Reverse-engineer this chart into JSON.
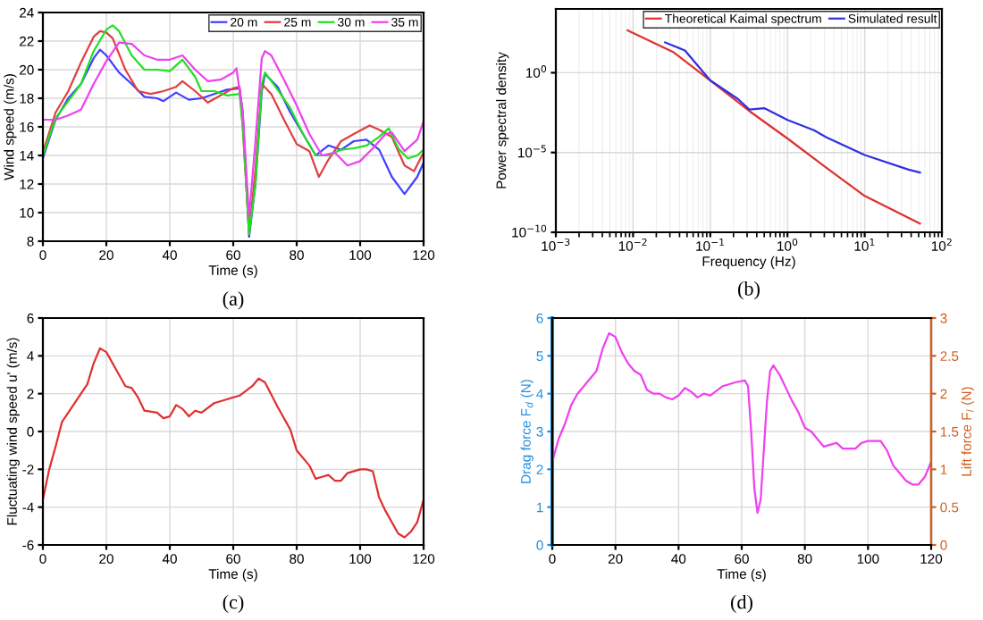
{
  "chart_data": [
    {
      "type": "line",
      "xlabel": "Time (s)",
      "ylabel": "Wind speed (m/s)",
      "annotations": [
        "(a)"
      ],
      "xlim": [
        0,
        120
      ],
      "ylim": [
        8,
        24
      ],
      "xticks": [
        0,
        20,
        40,
        60,
        80,
        100,
        120
      ],
      "yticks": [
        8,
        10,
        12,
        14,
        16,
        18,
        20,
        22,
        24
      ],
      "grid": true,
      "legend": "top right",
      "series": [
        {
          "name": "20 m",
          "color": "#4040ff",
          "x": [
            0,
            4,
            8,
            12,
            16,
            18,
            20,
            24,
            28,
            32,
            36,
            38,
            42,
            46,
            50,
            54,
            58,
            62,
            63,
            65,
            67,
            69,
            70,
            74,
            78,
            82,
            86,
            90,
            94,
            98,
            102,
            106,
            110,
            114,
            118,
            120
          ],
          "values": [
            13.8,
            16.5,
            18,
            19,
            20.8,
            21.4,
            21,
            19.8,
            19,
            18.1,
            18,
            17.8,
            18.4,
            17.9,
            18,
            18.3,
            18.6,
            18.7,
            17,
            8.3,
            12,
            18.5,
            19.7,
            18.8,
            17,
            15.5,
            14,
            14.7,
            14.4,
            15,
            15.1,
            14.4,
            12.5,
            11.3,
            12.5,
            13.5
          ]
        },
        {
          "name": "25 m",
          "color": "#e04040",
          "x": [
            0,
            4,
            8,
            12,
            16,
            18,
            20,
            22,
            26,
            30,
            34,
            38,
            42,
            44,
            48,
            52,
            56,
            60,
            62,
            63,
            65,
            67,
            69,
            72,
            76,
            80,
            84,
            87,
            90,
            94,
            98,
            103,
            106,
            110,
            114,
            117,
            120
          ],
          "values": [
            14.2,
            17,
            18.5,
            20.5,
            22.3,
            22.7,
            22.6,
            22.2,
            20,
            18.5,
            18.3,
            18.5,
            18.8,
            19.2,
            18.5,
            17.7,
            18.2,
            18.7,
            18.8,
            16,
            8.6,
            13,
            19,
            18.3,
            16.5,
            14.8,
            14.3,
            12.5,
            13.7,
            15,
            15.5,
            16.1,
            15.8,
            15.3,
            13.3,
            12.9,
            14.2
          ]
        },
        {
          "name": "30 m",
          "color": "#20e020",
          "x": [
            0,
            4,
            8,
            12,
            16,
            20,
            22,
            24,
            28,
            32,
            36,
            40,
            44,
            48,
            50,
            54,
            58,
            62,
            63,
            65,
            67,
            69,
            70,
            74,
            78,
            82,
            86,
            90,
            94,
            98,
            102,
            106,
            109,
            112,
            115,
            118,
            120
          ],
          "values": [
            14,
            16.6,
            17.8,
            19,
            21.3,
            22.8,
            23.1,
            22.7,
            21,
            20,
            20,
            19.9,
            20.7,
            19.5,
            18.5,
            18.5,
            18.2,
            18.3,
            16,
            8.5,
            12,
            19,
            19.8,
            18.6,
            17.3,
            15.5,
            14,
            14,
            14.4,
            14.5,
            14.7,
            15.3,
            15.9,
            14.5,
            13.8,
            14,
            14.4
          ]
        },
        {
          "name": "35 m",
          "color": "#f040f0",
          "x": [
            0,
            4,
            8,
            12,
            16,
            20,
            24,
            28,
            32,
            36,
            40,
            44,
            48,
            52,
            56,
            60,
            61,
            63,
            65,
            67,
            69,
            70,
            72,
            76,
            80,
            84,
            88,
            92,
            96,
            100,
            104,
            108,
            110,
            114,
            118,
            120
          ],
          "values": [
            16.5,
            16.5,
            16.8,
            17.2,
            19,
            20.6,
            21.9,
            21.8,
            21,
            20.7,
            20.7,
            21,
            20,
            19.2,
            19.3,
            19.8,
            20.1,
            17,
            9.7,
            15,
            20.8,
            21.3,
            21,
            19.3,
            17.5,
            15.5,
            14,
            14.2,
            13.3,
            13.6,
            14.5,
            15.5,
            15.6,
            14.3,
            15.1,
            16.4
          ]
        }
      ]
    },
    {
      "type": "line",
      "log": "xy",
      "xlabel": "Frequency (Hz)",
      "ylabel": "Power spectral density",
      "annotations": [
        "(b)"
      ],
      "xlim": [
        0.001,
        100
      ],
      "ylim": [
        1e-10,
        10000
      ],
      "xticks": [
        {
          "value": 0.001,
          "label": "10$^{−3}$"
        },
        {
          "value": 0.01,
          "label": "10$^{−2}$"
        },
        {
          "value": 0.1,
          "label": "10$^{−1}$"
        },
        {
          "value": 1,
          "label": "10$^{0}$"
        },
        {
          "value": 10,
          "label": "10$^{1}$"
        },
        {
          "value": 100,
          "label": "10$^{2}$"
        }
      ],
      "yticks": [
        {
          "value": 1e-10,
          "label": "10$^{−10}$"
        },
        {
          "value": 1e-05,
          "label": "10$^{−5}$"
        },
        {
          "value": 1,
          "label": "10$^{0}$"
        }
      ],
      "grid": true,
      "legend": "top right",
      "series": [
        {
          "name": "Theoretical Kaimal spectrum",
          "color": "#e03030",
          "x": [
            0.0085,
            0.033,
            0.1,
            0.32,
            1,
            3.2,
            10,
            52
          ],
          "values": [
            450,
            20,
            0.33,
            0.004,
            7.6e-05,
            1.1e-06,
            1.9e-08,
            3.5e-10
          ]
        },
        {
          "name": "Simulated result",
          "color": "#3030e0",
          "x": [
            0.026,
            0.047,
            0.1,
            0.23,
            0.32,
            0.5,
            1,
            2.2,
            3.2,
            10,
            37,
            52
          ],
          "values": [
            80,
            25,
            0.33,
            0.022,
            0.005,
            0.006,
            0.0011,
            0.00025,
            9e-05,
            7e-06,
            8.5e-07,
            5.6e-07
          ]
        }
      ]
    },
    {
      "type": "line",
      "xlabel": "Time (s)",
      "ylabel": "Fluctuating wind speed u' (m/s)",
      "annotations": [
        "(c)"
      ],
      "xlim": [
        0,
        120
      ],
      "ylim": [
        -6,
        6
      ],
      "xticks": [
        0,
        20,
        40,
        60,
        80,
        100,
        120
      ],
      "yticks": [
        -6,
        -4,
        -2,
        0,
        2,
        4,
        6
      ],
      "grid": true,
      "series": [
        {
          "color": "#e03030",
          "x": [
            0,
            2,
            4,
            6,
            8,
            12,
            14,
            16,
            18,
            20,
            24,
            26,
            28,
            30,
            32,
            36,
            38,
            40,
            42,
            44,
            46,
            48,
            50,
            54,
            58,
            62,
            66,
            68,
            70,
            74,
            78,
            80,
            84,
            86,
            88,
            90,
            92,
            94,
            96,
            100,
            102,
            104,
            106,
            108,
            110,
            112,
            114,
            116,
            118,
            120
          ],
          "values": [
            -3.6,
            -2,
            -0.8,
            0.5,
            1,
            2,
            2.5,
            3.6,
            4.4,
            4.2,
            3,
            2.4,
            2.3,
            1.8,
            1.1,
            1,
            0.7,
            0.8,
            1.4,
            1.2,
            0.8,
            1.1,
            1,
            1.5,
            1.7,
            1.9,
            2.4,
            2.8,
            2.6,
            1.3,
            0.1,
            -1,
            -1.8,
            -2.5,
            -2.4,
            -2.3,
            -2.6,
            -2.6,
            -2.2,
            -2,
            -2,
            -2.1,
            -3.5,
            -4.2,
            -4.8,
            -5.4,
            -5.6,
            -5.3,
            -4.8,
            -3.6
          ]
        }
      ]
    },
    {
      "type": "line",
      "xlabel": "Time (s)",
      "ylabel": "Drag force F$_{d}$ (N)",
      "y2label": "Lift force F$_{l}$ (N)",
      "annotations": [
        "(d)"
      ],
      "xlim": [
        0,
        120
      ],
      "ylim": [
        0,
        6
      ],
      "y2lim": [
        0,
        3
      ],
      "xticks": [
        0,
        20,
        40,
        60,
        80,
        100,
        120
      ],
      "yticks": [
        0,
        1,
        2,
        3,
        4,
        5,
        6
      ],
      "y2ticks": [
        0,
        0.5,
        1,
        1.5,
        2,
        2.5,
        3
      ],
      "grid": true,
      "series": [
        {
          "color": "#f040f0",
          "x": [
            0,
            2,
            4,
            6,
            8,
            12,
            14,
            16,
            18,
            20,
            22,
            24,
            26,
            28,
            30,
            32,
            34,
            36,
            38,
            40,
            42,
            44,
            46,
            48,
            50,
            54,
            58,
            61,
            62,
            63,
            64,
            65,
            66,
            67,
            68,
            69,
            70,
            72,
            76,
            78,
            80,
            82,
            84,
            86,
            88,
            90,
            92,
            96,
            98,
            100,
            104,
            106,
            108,
            110,
            112,
            114,
            116,
            118,
            120
          ],
          "values": [
            2.2,
            2.8,
            3.2,
            3.7,
            4,
            4.4,
            4.6,
            5.2,
            5.6,
            5.5,
            5.1,
            4.8,
            4.6,
            4.5,
            4.1,
            4,
            4,
            3.9,
            3.85,
            3.95,
            4.15,
            4.05,
            3.9,
            4,
            3.95,
            4.2,
            4.3,
            4.35,
            4.2,
            3,
            1.5,
            0.85,
            1.2,
            2.5,
            3.8,
            4.6,
            4.75,
            4.5,
            3.8,
            3.5,
            3.1,
            3,
            2.8,
            2.6,
            2.65,
            2.7,
            2.55,
            2.55,
            2.7,
            2.75,
            2.75,
            2.5,
            2.1,
            1.9,
            1.7,
            1.6,
            1.6,
            1.8,
            2.2
          ]
        }
      ]
    }
  ]
}
